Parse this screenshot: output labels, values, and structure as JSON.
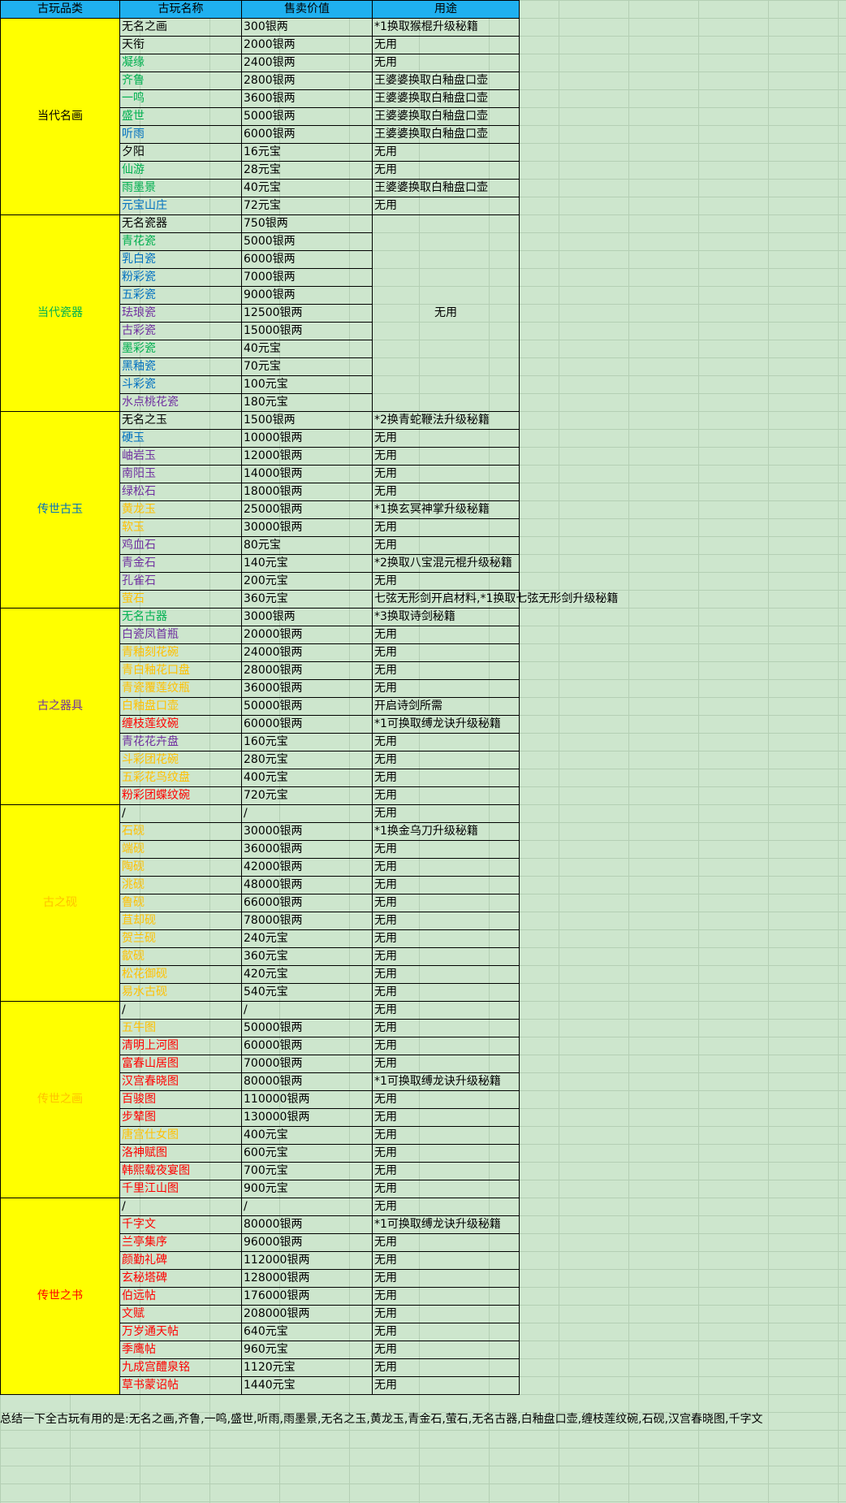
{
  "headers": [
    "古玩品类",
    "古玩名称",
    "售卖价值",
    "用途"
  ],
  "categories": [
    {
      "name": "当代名画",
      "color": "#000000",
      "items": [
        {
          "name": "无名之画",
          "color": "#000000",
          "price": "300银两",
          "use": "*1换取猴棍升级秘籍"
        },
        {
          "name": "天衔",
          "color": "#000000",
          "price": "2000银两",
          "use": "无用"
        },
        {
          "name": "凝缘",
          "color": "#00b050",
          "price": "2400银两",
          "use": "无用"
        },
        {
          "name": "齐鲁",
          "color": "#00b050",
          "price": "2800银两",
          "use": "王婆婆换取白釉盘口壶"
        },
        {
          "name": "一鸣",
          "color": "#00b050",
          "price": "3600银两",
          "use": "王婆婆换取白釉盘口壶"
        },
        {
          "name": "盛世",
          "color": "#00b050",
          "price": "5000银两",
          "use": "王婆婆换取白釉盘口壶"
        },
        {
          "name": "听雨",
          "color": "#0070c0",
          "price": "6000银两",
          "use": "王婆婆换取白釉盘口壶"
        },
        {
          "name": "夕阳",
          "color": "#000000",
          "price": "16元宝",
          "use": "无用"
        },
        {
          "name": "仙游",
          "color": "#00b050",
          "price": "28元宝",
          "use": "无用"
        },
        {
          "name": "雨墨景",
          "color": "#00b050",
          "price": "40元宝",
          "use": "王婆婆换取白釉盘口壶"
        },
        {
          "name": "元宝山庄",
          "color": "#0070c0",
          "price": "72元宝",
          "use": "无用"
        }
      ]
    },
    {
      "name": "当代瓷器",
      "color": "#00b050",
      "merged_use": "无用",
      "items": [
        {
          "name": "无名瓷器",
          "color": "#000000",
          "price": "750银两"
        },
        {
          "name": "青花瓷",
          "color": "#00b050",
          "price": "5000银两"
        },
        {
          "name": "乳白瓷",
          "color": "#0070c0",
          "price": "6000银两"
        },
        {
          "name": "粉彩瓷",
          "color": "#0070c0",
          "price": "7000银两"
        },
        {
          "name": "五彩瓷",
          "color": "#0070c0",
          "price": "9000银两"
        },
        {
          "name": "珐琅瓷",
          "color": "#7030a0",
          "price": "12500银两"
        },
        {
          "name": "古彩瓷",
          "color": "#7030a0",
          "price": "15000银两"
        },
        {
          "name": "墨彩瓷",
          "color": "#00b050",
          "price": "40元宝"
        },
        {
          "name": "黑釉瓷",
          "color": "#0070c0",
          "price": "70元宝"
        },
        {
          "name": "斗彩瓷",
          "color": "#0070c0",
          "price": "100元宝"
        },
        {
          "name": "水点桃花瓷",
          "color": "#7030a0",
          "price": "180元宝"
        }
      ]
    },
    {
      "name": "传世古玉",
      "color": "#0070c0",
      "items": [
        {
          "name": "无名之玉",
          "color": "#000000",
          "price": "1500银两",
          "use": "*2换青蛇鞭法升级秘籍"
        },
        {
          "name": "硬玉",
          "color": "#0070c0",
          "price": "10000银两",
          "use": "无用"
        },
        {
          "name": "岫岩玉",
          "color": "#7030a0",
          "price": "12000银两",
          "use": "无用"
        },
        {
          "name": "南阳玉",
          "color": "#7030a0",
          "price": "14000银两",
          "use": "无用"
        },
        {
          "name": "绿松石",
          "color": "#7030a0",
          "price": "18000银两",
          "use": "无用"
        },
        {
          "name": "黄龙玉",
          "color": "#ffc000",
          "price": "25000银两",
          "use": "*1换玄冥神掌升级秘籍"
        },
        {
          "name": "软玉",
          "color": "#ffc000",
          "price": "30000银两",
          "use": "无用"
        },
        {
          "name": "鸡血石",
          "color": "#7030a0",
          "price": "80元宝",
          "use": "无用"
        },
        {
          "name": "青金石",
          "color": "#7030a0",
          "price": "140元宝",
          "use": "*2换取八宝混元棍升级秘籍"
        },
        {
          "name": "孔雀石",
          "color": "#7030a0",
          "price": "200元宝",
          "use": "无用"
        },
        {
          "name": "萤石",
          "color": "#ffc000",
          "price": "360元宝",
          "use": "七弦无形剑开启材料,*1换取七弦无形剑升级秘籍"
        }
      ]
    },
    {
      "name": "古之器具",
      "color": "#7030a0",
      "items": [
        {
          "name": "无名古器",
          "color": "#00b050",
          "price": "3000银两",
          "use": "*3换取诗剑秘籍"
        },
        {
          "name": "白瓷凤首瓶",
          "color": "#7030a0",
          "price": "20000银两",
          "use": "无用"
        },
        {
          "name": "青釉刻花碗",
          "color": "#ffc000",
          "price": "24000银两",
          "use": "无用"
        },
        {
          "name": "青白釉花口盘",
          "color": "#ffc000",
          "price": "28000银两",
          "use": "无用"
        },
        {
          "name": "青瓷覆莲纹瓶",
          "color": "#ffc000",
          "price": "36000银两",
          "use": "无用"
        },
        {
          "name": "白釉盘口壶",
          "color": "#ffc000",
          "price": "50000银两",
          "use": "开启诗剑所需"
        },
        {
          "name": "缠枝莲纹碗",
          "color": "#ff0000",
          "price": "60000银两",
          "use": "*1可换取缚龙诀升级秘籍"
        },
        {
          "name": "青花花卉盘",
          "color": "#7030a0",
          "price": "160元宝",
          "use": "无用"
        },
        {
          "name": "斗彩团花碗",
          "color": "#ffc000",
          "price": "280元宝",
          "use": "无用"
        },
        {
          "name": "五彩花鸟纹盘",
          "color": "#ffc000",
          "price": "400元宝",
          "use": "无用"
        },
        {
          "name": "粉彩团蝶纹碗",
          "color": "#ff0000",
          "price": "720元宝",
          "use": "无用"
        }
      ]
    },
    {
      "name": "古之砚",
      "color": "#ffc000",
      "items": [
        {
          "name": "/",
          "color": "#000000",
          "price": "/",
          "use": "无用"
        },
        {
          "name": "石砚",
          "color": "#ffc000",
          "price": "30000银两",
          "use": "*1换金乌刀升级秘籍"
        },
        {
          "name": "端砚",
          "color": "#ffc000",
          "price": "36000银两",
          "use": "无用"
        },
        {
          "name": "陶砚",
          "color": "#ffc000",
          "price": "42000银两",
          "use": "无用"
        },
        {
          "name": "洮砚",
          "color": "#ffc000",
          "price": "48000银两",
          "use": "无用"
        },
        {
          "name": "鲁砚",
          "color": "#ffc000",
          "price": "66000银两",
          "use": "无用"
        },
        {
          "name": "苴却砚",
          "color": "#ffc000",
          "price": "78000银两",
          "use": "无用"
        },
        {
          "name": "贺兰砚",
          "color": "#ffc000",
          "price": "240元宝",
          "use": "无用"
        },
        {
          "name": "歙砚",
          "color": "#ffc000",
          "price": "360元宝",
          "use": "无用"
        },
        {
          "name": "松花御砚",
          "color": "#ffc000",
          "price": "420元宝",
          "use": "无用"
        },
        {
          "name": "易水古砚",
          "color": "#ffc000",
          "price": "540元宝",
          "use": "无用"
        }
      ]
    },
    {
      "name": "传世之画",
      "color": "#ffc000",
      "items": [
        {
          "name": "/",
          "color": "#000000",
          "price": "/",
          "use": "无用"
        },
        {
          "name": "五牛图",
          "color": "#ffc000",
          "price": "50000银两",
          "use": "无用"
        },
        {
          "name": "清明上河图",
          "color": "#ff0000",
          "price": "60000银两",
          "use": "无用"
        },
        {
          "name": "富春山居图",
          "color": "#ff0000",
          "price": "70000银两",
          "use": "无用"
        },
        {
          "name": "汉宫春晓图",
          "color": "#ff0000",
          "price": "80000银两",
          "use": "*1可换取缚龙诀升级秘籍"
        },
        {
          "name": "百骏图",
          "color": "#ff0000",
          "price": "110000银两",
          "use": "无用"
        },
        {
          "name": "步辇图",
          "color": "#ff0000",
          "price": "130000银两",
          "use": "无用"
        },
        {
          "name": "唐宫仕女图",
          "color": "#ffc000",
          "price": "400元宝",
          "use": "无用"
        },
        {
          "name": "洛神赋图",
          "color": "#ff0000",
          "price": "600元宝",
          "use": "无用"
        },
        {
          "name": "韩熙载夜宴图",
          "color": "#ff0000",
          "price": "700元宝",
          "use": "无用"
        },
        {
          "name": "千里江山图",
          "color": "#ff0000",
          "price": "900元宝",
          "use": "无用"
        }
      ]
    },
    {
      "name": "传世之书",
      "color": "#ff0000",
      "items": [
        {
          "name": "/",
          "color": "#000000",
          "price": "/",
          "use": "无用"
        },
        {
          "name": "千字文",
          "color": "#ff0000",
          "price": "80000银两",
          "use": "*1可换取缚龙诀升级秘籍"
        },
        {
          "name": "兰亭集序",
          "color": "#ff0000",
          "price": "96000银两",
          "use": "无用"
        },
        {
          "name": "颜勤礼碑",
          "color": "#ff0000",
          "price": "112000银两",
          "use": "无用"
        },
        {
          "name": "玄秘塔碑",
          "color": "#ff0000",
          "price": "128000银两",
          "use": "无用"
        },
        {
          "name": "伯远帖",
          "color": "#ff0000",
          "price": "176000银两",
          "use": "无用"
        },
        {
          "name": "文赋",
          "color": "#ff0000",
          "price": "208000银两",
          "use": "无用"
        },
        {
          "name": "万岁通天帖",
          "color": "#ff0000",
          "price": "640元宝",
          "use": "无用"
        },
        {
          "name": "季鹰帖",
          "color": "#ff0000",
          "price": "960元宝",
          "use": "无用"
        },
        {
          "name": "九成宫醴泉铭",
          "color": "#ff0000",
          "price": "1120元宝",
          "use": "无用"
        },
        {
          "name": "草书蒙诏帖",
          "color": "#ff0000",
          "price": "1440元宝",
          "use": "无用"
        }
      ]
    }
  ],
  "summary": "总结一下全古玩有用的是:无名之画,齐鲁,一鸣,盛世,听雨,雨墨景,无名之玉,黄龙玉,青金石,萤石,无名古器,白釉盘口壶,缠枝莲纹碗,石砚,汉宫春晓图,千字文",
  "colors": {
    "header_bg": "#1fb0ef",
    "category_bg": "#ffff00",
    "sheet_bg": "#cde6cd",
    "gridline": "#b4cfb4"
  }
}
